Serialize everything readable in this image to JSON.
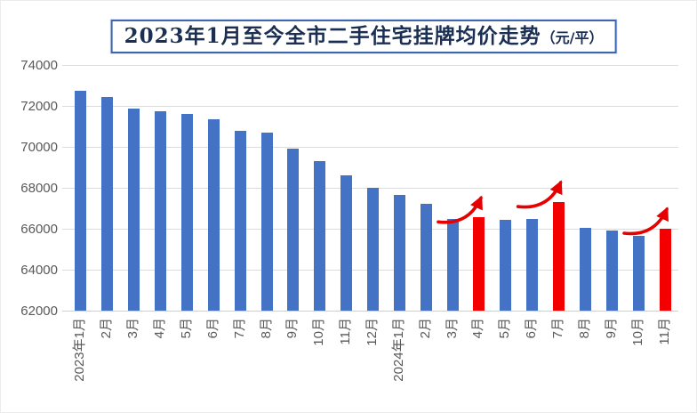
{
  "title": {
    "main": "2023年1月至今全市二手住宅挂牌均价走势",
    "unit": "（元/平）"
  },
  "chart_data": {
    "type": "bar",
    "title": "2023年1月至今全市二手住宅挂牌均价走势（元/平）",
    "categories": [
      "2023年1月",
      "2月",
      "3月",
      "4月",
      "5月",
      "6月",
      "7月",
      "8月",
      "9月",
      "10月",
      "11月",
      "12月",
      "2024年1月",
      "2月",
      "3月",
      "4月",
      "5月",
      "6月",
      "7月",
      "8月",
      "9月",
      "10月",
      "11月"
    ],
    "values": [
      72750,
      72450,
      71850,
      71750,
      71600,
      71350,
      70800,
      70700,
      69900,
      69300,
      68600,
      68000,
      67650,
      67200,
      66500,
      66550,
      66450,
      66500,
      67300,
      66050,
      65900,
      65650,
      66000
    ],
    "ylim": [
      62000,
      74000
    ],
    "yticks": [
      62000,
      64000,
      66000,
      68000,
      70000,
      72000,
      74000
    ],
    "grid": "horizontal-light",
    "legend": "none",
    "highlight_indices": [
      15,
      18,
      22
    ],
    "annotations": [
      {
        "type": "curved-up-arrow",
        "target_category": "2024年4月",
        "target_index": 15
      },
      {
        "type": "curved-up-arrow",
        "target_category": "2024年7月",
        "target_index": 18
      },
      {
        "type": "curved-up-arrow",
        "target_category": "2024年11月",
        "target_index": 22
      }
    ],
    "colors": {
      "bar_default": "#4472C4",
      "bar_highlight": "#F40000",
      "gridline": "#DCDCDC",
      "axis_label": "#595959",
      "title_text": "#1A2F52",
      "title_border": "#3C66AD",
      "arrow": "#E60000"
    }
  }
}
